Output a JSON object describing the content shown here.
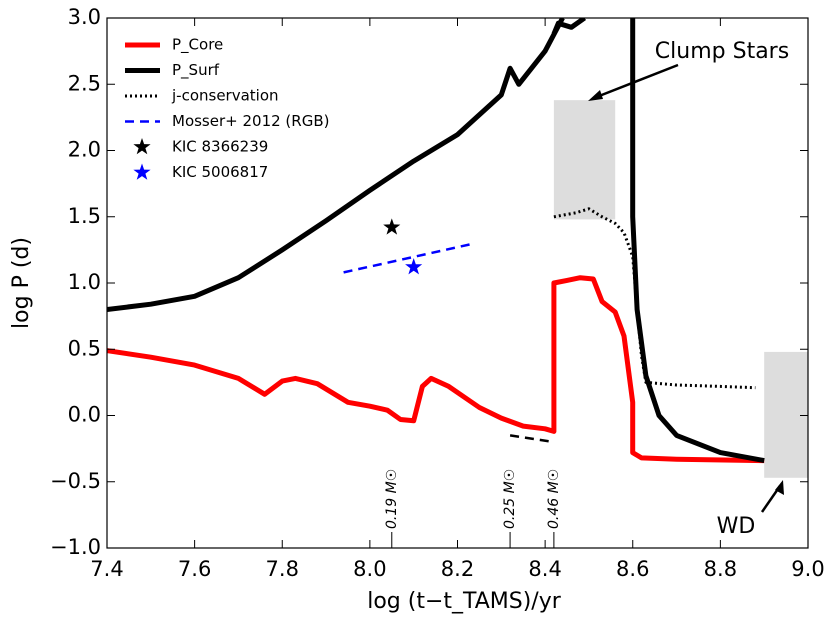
{
  "chart_data": {
    "type": "line",
    "xlabel": "log (t−t_TAMS)/yr",
    "ylabel": "log P (d)",
    "xlim": [
      7.4,
      9.0
    ],
    "ylim": [
      -1.0,
      3.0
    ],
    "xticks": [
      7.4,
      7.6,
      7.8,
      {
        "value": 8,
        "label": "8.0"
      },
      8.2,
      8.4,
      8.6,
      8.8,
      {
        "value": 9,
        "label": "9.0"
      }
    ],
    "yticks": [
      {
        "value": -1,
        "label": "−1.0"
      },
      {
        "value": -0.5,
        "label": "−0.5"
      },
      {
        "value": 0,
        "label": "0.0"
      },
      0.5,
      {
        "value": 1,
        "label": "1.0"
      },
      1.5,
      {
        "value": 2,
        "label": "2.0"
      },
      2.5,
      {
        "value": 3,
        "label": "3.0"
      }
    ],
    "legend": "upper left",
    "series": [
      {
        "name": "P_Core",
        "color": "#ff0000",
        "style": "solid",
        "x": [
          7.4,
          7.5,
          7.6,
          7.7,
          7.76,
          7.8,
          7.83,
          7.88,
          7.95,
          8.0,
          8.04,
          8.07,
          8.1,
          8.12,
          8.14,
          8.18,
          8.25,
          8.3,
          8.35,
          8.4,
          8.42,
          8.42,
          8.45,
          8.48,
          8.51,
          8.53,
          8.56,
          8.58,
          8.6,
          8.6,
          8.62,
          8.7,
          8.9
        ],
        "values": [
          0.49,
          0.44,
          0.38,
          0.28,
          0.16,
          0.26,
          0.28,
          0.24,
          0.1,
          0.07,
          0.04,
          -0.03,
          -0.04,
          0.22,
          0.28,
          0.22,
          0.06,
          -0.02,
          -0.08,
          -0.1,
          -0.12,
          1.0,
          1.02,
          1.04,
          1.03,
          0.86,
          0.78,
          0.6,
          0.1,
          -0.28,
          -0.32,
          -0.33,
          -0.34
        ]
      },
      {
        "name": "P_Surf",
        "color": "#000000",
        "style": "solid",
        "x": [
          7.4,
          7.5,
          7.6,
          7.7,
          7.8,
          7.9,
          8.0,
          8.1,
          8.2,
          8.3,
          8.32,
          8.34,
          8.4,
          8.44,
          null,
          8.42,
          8.43,
          8.46,
          8.49,
          null,
          8.6,
          8.6,
          8.61,
          8.63,
          8.66,
          8.7,
          8.8,
          8.9
        ],
        "values": [
          0.8,
          0.84,
          0.9,
          1.04,
          1.25,
          1.47,
          1.7,
          1.92,
          2.12,
          2.42,
          2.62,
          2.5,
          2.75,
          3.0,
          null,
          2.88,
          2.96,
          2.93,
          3.0,
          null,
          3.0,
          1.5,
          0.8,
          0.3,
          0.0,
          -0.15,
          -0.28,
          -0.34
        ]
      },
      {
        "name": "j-conservation",
        "color": "#000000",
        "style": "dotted",
        "x": [
          8.42,
          8.47,
          8.5,
          8.53,
          8.56,
          8.58,
          8.6,
          8.61,
          8.62,
          8.63,
          8.7,
          8.8,
          8.88
        ],
        "values": [
          1.5,
          1.53,
          1.56,
          1.5,
          1.45,
          1.38,
          1.2,
          0.8,
          0.45,
          0.25,
          0.23,
          0.22,
          0.21
        ]
      },
      {
        "name": "Mosser+ 2012 (RGB)",
        "color": "#0000ff",
        "style": "dashed",
        "x": [
          7.94,
          8.24
        ],
        "values": [
          1.08,
          1.3
        ]
      },
      {
        "name": "KIC 8366239",
        "color": "#000000",
        "style": "star",
        "x": [
          8.05
        ],
        "values": [
          1.42
        ]
      },
      {
        "name": "KIC 5006817",
        "color": "#0000ff",
        "style": "star",
        "x": [
          8.1
        ],
        "values": [
          1.12
        ]
      },
      {
        "color": "#000000",
        "style": "dashed",
        "x": [
          8.32,
          8.42
        ],
        "values": [
          -0.15,
          -0.2
        ]
      }
    ],
    "regions": [
      {
        "color": "#dddddd",
        "x": [
          8.42,
          8.56
        ],
        "y": [
          1.48,
          2.38
        ]
      },
      {
        "color": "#dddddd",
        "x": [
          8.9,
          9.0
        ],
        "y": [
          -0.47,
          0.48
        ]
      }
    ],
    "mass_markers": [
      {
        "x": 8.05,
        "label": "0.19 M☉"
      },
      {
        "x": 8.32,
        "label": "0.25 M☉"
      },
      {
        "x": 8.42,
        "label": "0.46 M☉"
      }
    ],
    "annotations": [
      "Clump Stars",
      "WD"
    ]
  }
}
